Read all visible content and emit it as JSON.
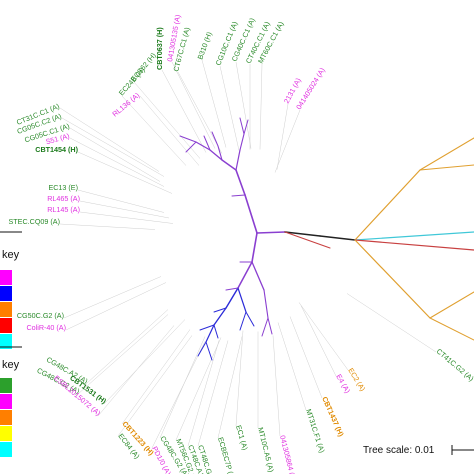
{
  "figure": {
    "scale_label": "Tree scale: 0.01",
    "keys": [
      {
        "label": "key",
        "swatches": [
          "#ff00ff",
          "#0000ff",
          "#ff7f00",
          "#ff0000",
          "#00ffff"
        ]
      },
      {
        "label": "key",
        "swatches": [
          "#2ca02c",
          "#ff00ff",
          "#ff7f00",
          "#ffff00",
          "#00ffff"
        ]
      }
    ]
  },
  "labels": [
    {
      "text": "CBT0637 (H)",
      "color": "#1b7a1b",
      "bold": true
    },
    {
      "text": "041305135 (A)",
      "color": "#e030e0",
      "bold": false
    },
    {
      "text": "CT67C.C1 (A)",
      "color": "#2a8a2a",
      "bold": false
    },
    {
      "text": "B310 (H)",
      "color": "#2a8a2a",
      "bold": false
    },
    {
      "text": "CG10C.C1 (A)",
      "color": "#2a8a2a",
      "bold": false
    },
    {
      "text": "CG40C.C1 (A)",
      "color": "#2a8a2a",
      "bold": false
    },
    {
      "text": "CT40C.C1 (A)",
      "color": "#2a8a2a",
      "bold": false
    },
    {
      "text": "MT60C.C1 (A)",
      "color": "#2a8a2a",
      "bold": false
    },
    {
      "text": "ECS62 (H)",
      "color": "#2a8a2a",
      "bold": false
    },
    {
      "text": "EC24B (H)",
      "color": "#2a8a2a",
      "bold": false
    },
    {
      "text": "RL136 (A)",
      "color": "#e030e0",
      "bold": false
    },
    {
      "text": "2131 (A)",
      "color": "#e030e0",
      "bold": false
    },
    {
      "text": "041405024 (A)",
      "color": "#e030e0",
      "bold": false
    },
    {
      "text": "CT31C.C1 (A)",
      "color": "#2a8a2a",
      "bold": false
    },
    {
      "text": "CG05C.C2 (A)",
      "color": "#2a8a2a",
      "bold": false
    },
    {
      "text": "CG05C.C1 (A)",
      "color": "#2a8a2a",
      "bold": false
    },
    {
      "text": "S51 (A)",
      "color": "#e030e0",
      "bold": false
    },
    {
      "text": "CBT1454 (H)",
      "color": "#1b7a1b",
      "bold": true
    },
    {
      "text": "EC13 (E)",
      "color": "#2a8a2a",
      "bold": false
    },
    {
      "text": "RL465 (A)",
      "color": "#e030e0",
      "bold": false
    },
    {
      "text": "RL145 (A)",
      "color": "#e030e0",
      "bold": false
    },
    {
      "text": "STEC.CQ09 (A)",
      "color": "#2a8a2a",
      "bold": false
    },
    {
      "text": "CG50C.G2 (A)",
      "color": "#2a8a2a",
      "bold": false
    },
    {
      "text": "ColiR-40 (A)",
      "color": "#e030e0",
      "bold": false
    },
    {
      "text": "CG48C.A2 (A)",
      "color": "#2a8a2a",
      "bold": false
    },
    {
      "text": "CG48C.G2 (A)",
      "color": "#2a8a2a",
      "bold": false
    },
    {
      "text": "CBT1531 (H)",
      "color": "#1b7a1b",
      "bold": true
    },
    {
      "text": "ESBL2015072 (A)",
      "color": "#e030e0",
      "bold": false
    },
    {
      "text": "CBT1223 (H)",
      "color": "#e08a00",
      "bold": true
    },
    {
      "text": "EC84 (A)",
      "color": "#2a8a2a",
      "bold": false
    },
    {
      "text": "CG48C.G2 (A)",
      "color": "#2a8a2a",
      "bold": false
    },
    {
      "text": "PD1/0 (A)",
      "color": "#e030e0",
      "bold": false
    },
    {
      "text": "MT56C.G2 (A)",
      "color": "#2a8a2a",
      "bold": false
    },
    {
      "text": "CT48C.A1 (A)",
      "color": "#2a8a2a",
      "bold": false
    },
    {
      "text": "CT48C.G2 (A)",
      "color": "#2a8a2a",
      "bold": false
    },
    {
      "text": "ECBEC7P (A)",
      "color": "#2a8a2a",
      "bold": false
    },
    {
      "text": "EC1 (A)",
      "color": "#2a8a2a",
      "bold": false
    },
    {
      "text": "MT10C.A5 (A)",
      "color": "#2a8a2a",
      "bold": false
    },
    {
      "text": "041305864 (A)",
      "color": "#e030e0",
      "bold": false
    },
    {
      "text": "MT31C.F1 (A)",
      "color": "#2a8a2a",
      "bold": false
    },
    {
      "text": "CBT1437 (H)",
      "color": "#e08a00",
      "bold": true
    },
    {
      "text": "E4 (A)",
      "color": "#e030e0",
      "bold": false
    },
    {
      "text": "EC2 (A)",
      "color": "#e08a00",
      "bold": false
    },
    {
      "text": "CT41C.G2 (A)",
      "color": "#2a8a2a",
      "bold": false
    }
  ]
}
